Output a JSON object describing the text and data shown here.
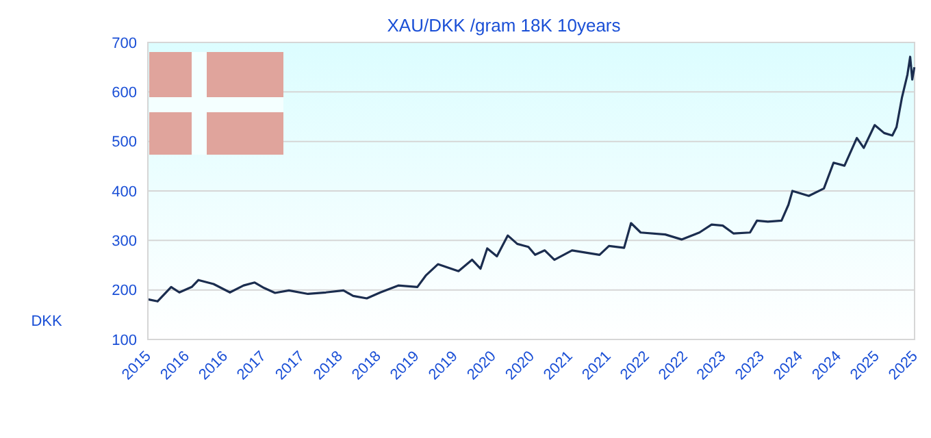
{
  "chart_data": {
    "type": "line",
    "title": "XAU/DKK /gram 18K 10years",
    "ylabel": "DKK",
    "x": [
      "2015-10-15",
      "2015-11-30",
      "2016-02-03",
      "2016-03-13",
      "2016-05-11",
      "2016-06-12",
      "2016-08-23",
      "2016-11-09",
      "2017-01-13",
      "2017-03-07",
      "2017-04-21",
      "2017-06-12",
      "2017-08-17",
      "2017-11-16",
      "2018-02-09",
      "2018-05-04",
      "2018-06-19",
      "2018-08-23",
      "2018-10-27",
      "2019-01-20",
      "2019-04-21",
      "2019-05-31",
      "2019-07-28",
      "2019-11-03",
      "2020-01-07",
      "2020-02-16",
      "2020-03-19",
      "2020-05-04",
      "2020-06-25",
      "2020-08-09",
      "2020-10-01",
      "2020-11-02",
      "2020-12-18",
      "2021-02-02",
      "2021-04-27",
      "2021-09-05",
      "2021-10-20",
      "2021-12-31",
      "2022-02-02",
      "2022-03-20",
      "2022-07-15",
      "2022-10-01",
      "2022-12-25",
      "2023-02-21",
      "2023-04-15",
      "2023-06-06",
      "2023-08-23",
      "2023-09-25",
      "2023-11-16",
      "2024-01-20",
      "2024-02-22",
      "2024-03-12",
      "2024-05-29",
      "2024-08-09",
      "2024-09-24",
      "2024-11-15",
      "2025-01-13",
      "2025-02-15",
      "2025-04-08",
      "2025-05-23",
      "2025-07-01",
      "2025-07-21",
      "2025-08-16",
      "2025-09-11",
      "2025-09-24",
      "2025-10-04",
      "2025-10-14"
    ],
    "series": [
      {
        "color": "#1b2d4f",
        "values": [
          181,
          177,
          206,
          195,
          206,
          220,
          212,
          195,
          209,
          215,
          204,
          194,
          199,
          192,
          195,
          199,
          188,
          183,
          195,
          209,
          206,
          229,
          252,
          238,
          261,
          243,
          284,
          268,
          310,
          293,
          287,
          271,
          280,
          261,
          280,
          271,
          289,
          285,
          335,
          316,
          312,
          302,
          316,
          332,
          330,
          314,
          316,
          340,
          338,
          340,
          372,
          400,
          390,
          405,
          457,
          451,
          507,
          487,
          533,
          517,
          512,
          529,
          589,
          635,
          671,
          625,
          650
        ]
      }
    ],
    "xlim": [
      "2015-10-15",
      "2025-10-15"
    ],
    "xticks": [
      {
        "value": "2015-10-15",
        "label": "2015"
      },
      {
        "value": "2016-04-15",
        "label": "2016"
      },
      {
        "value": "2016-10-15",
        "label": "2016"
      },
      {
        "value": "2017-04-15",
        "label": "2017"
      },
      {
        "value": "2017-10-15",
        "label": "2017"
      },
      {
        "value": "2018-04-15",
        "label": "2018"
      },
      {
        "value": "2018-10-15",
        "label": "2018"
      },
      {
        "value": "2019-04-15",
        "label": "2019"
      },
      {
        "value": "2019-10-15",
        "label": "2019"
      },
      {
        "value": "2020-04-15",
        "label": "2020"
      },
      {
        "value": "2020-10-15",
        "label": "2020"
      },
      {
        "value": "2021-04-15",
        "label": "2021"
      },
      {
        "value": "2021-10-15",
        "label": "2021"
      },
      {
        "value": "2022-04-15",
        "label": "2022"
      },
      {
        "value": "2022-10-15",
        "label": "2022"
      },
      {
        "value": "2023-04-15",
        "label": "2023"
      },
      {
        "value": "2023-10-15",
        "label": "2023"
      },
      {
        "value": "2024-04-15",
        "label": "2024"
      },
      {
        "value": "2024-10-15",
        "label": "2024"
      },
      {
        "value": "2025-04-15",
        "label": "2025"
      },
      {
        "value": "2025-10-15",
        "label": "2025"
      }
    ],
    "ylim": [
      100,
      700
    ],
    "yticks": [
      100,
      200,
      300,
      400,
      500,
      600,
      700
    ],
    "grid": "y",
    "line_style": "solid",
    "marker": "none"
  }
}
